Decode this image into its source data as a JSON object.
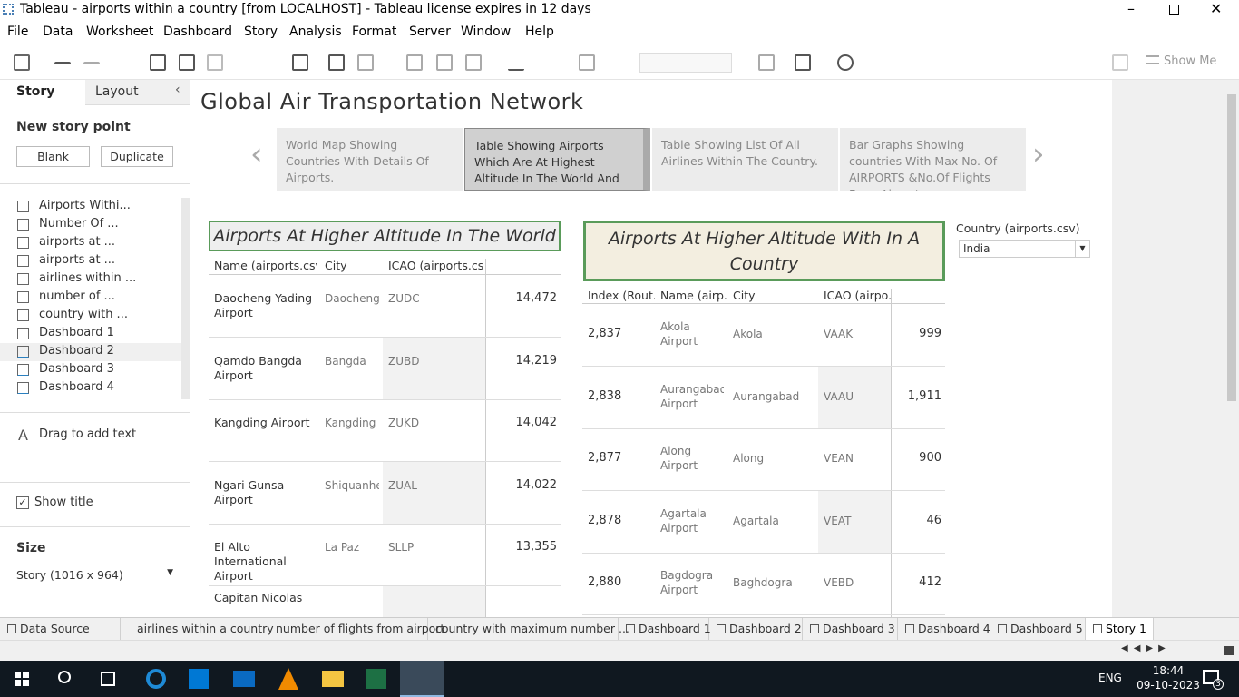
{
  "window": {
    "title": "Tableau - airports within a country [from LOCALHOST] - Tableau license expires in 12 days"
  },
  "menu": [
    "File",
    "Data",
    "Worksheet",
    "Dashboard",
    "Story",
    "Analysis",
    "Format",
    "Server",
    "Window",
    "Help"
  ],
  "toolbar": {
    "show_me": "Show Me"
  },
  "sidebar": {
    "tabs": [
      "Story",
      "Layout"
    ],
    "new_story_point": "New story point",
    "buttons": [
      "Blank",
      "Duplicate"
    ],
    "sheets": [
      "Airports Withi...",
      "Number Of ...",
      "airports at ...",
      "airports at ...",
      "airlines within ...",
      "number of ...",
      "country with ...",
      "Dashboard 1",
      "Dashboard 2",
      "Dashboard 3",
      "Dashboard 4"
    ],
    "drag_text": "Drag to add text",
    "show_title": "Show title",
    "size_label": "Size",
    "size_value": "Story (1016 x 964)"
  },
  "story": {
    "title": "Global Air Transportation Network",
    "points": [
      "World Map Showing Countries With Details Of Airports.",
      "Table Showing Airports Which Are At Highest Altitude In The World And With In The Country.",
      "Table Showing List Of All Airlines Within The Country.",
      "Bar Graphs Showing countries With Max No. Of AIRPORTS &No.Of Flights From Airports."
    ]
  },
  "world_table": {
    "title": "Airports At Higher Altitude In The World",
    "headers": [
      "Name (airports.csv)",
      "City",
      "ICAO (airports.cs.."
    ],
    "rows": [
      [
        "Daocheng Yading Airport",
        "Daocheng",
        "ZUDC",
        "14,472"
      ],
      [
        "Qamdo Bangda Airport",
        "Bangda",
        "ZUBD",
        "14,219"
      ],
      [
        "Kangding Airport",
        "Kangding",
        "ZUKD",
        "14,042"
      ],
      [
        "Ngari Gunsa Airport",
        "Shiquanhe",
        "ZUAL",
        "14,022"
      ],
      [
        "El Alto International Airport",
        "La Paz",
        "SLLP",
        "13,355"
      ],
      [
        "Capitan Nicolas"
      ]
    ]
  },
  "country_table": {
    "title": "Airports At Higher Altitude With In A Country",
    "headers": [
      "Index (Rout..",
      "Name (airp..",
      "City",
      "ICAO (airpo.."
    ],
    "rows": [
      [
        "2,837",
        "Akola Airport",
        "Akola",
        "VAAK",
        "999"
      ],
      [
        "2,838",
        "Aurangabad Airport",
        "Aurangabad",
        "VAAU",
        "1,911"
      ],
      [
        "2,877",
        "Along Airport",
        "Along",
        "VEAN",
        "900"
      ],
      [
        "2,878",
        "Agartala Airport",
        "Agartala",
        "VEAT",
        "46"
      ],
      [
        "2,880",
        "Bagdogra Airport",
        "Baghdogra",
        "VEBD",
        "412"
      ]
    ]
  },
  "filter": {
    "label": "Country (airports.csv)",
    "value": "India"
  },
  "sheet_tabs": [
    "Data Source",
    "airlines within a country",
    "number of flights from airport",
    "country with maximum number ...",
    "Dashboard 1",
    "Dashboard 2",
    "Dashboard 3",
    "Dashboard 4",
    "Dashboard 5",
    "Story 1"
  ],
  "taskbar": {
    "language": "ENG",
    "time": "18:44",
    "date": "09-10-2023",
    "notifications": "3"
  }
}
